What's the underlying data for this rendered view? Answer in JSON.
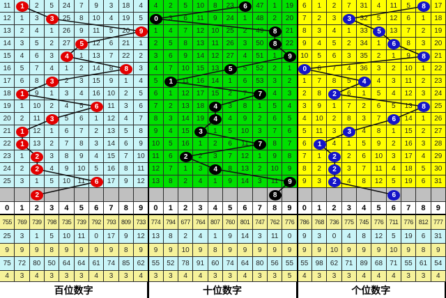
{
  "chart_data": {
    "type": "table",
    "digit_headers": [
      "0",
      "1",
      "2",
      "3",
      "4",
      "5",
      "6",
      "7",
      "8",
      "9"
    ],
    "panels": [
      {
        "label": "百位数字",
        "colors": {
          "background": "#c9f5f8",
          "ball": "#e30000",
          "ball_text": "#ffffff",
          "line": "#111111"
        },
        "hits": [
          1,
          3,
          9,
          5,
          4,
          8,
          3,
          1,
          6,
          3,
          1,
          1,
          2,
          2,
          6,
          2
        ],
        "rows": [
          [
            11,
            1,
            2,
            5,
            24,
            7,
            9,
            3,
            18,
            4
          ],
          [
            12,
            1,
            3,
            3,
            25,
            8,
            10,
            4,
            19,
            5
          ],
          [
            13,
            2,
            4,
            1,
            26,
            9,
            11,
            5,
            20,
            9
          ],
          [
            14,
            3,
            5,
            2,
            27,
            5,
            12,
            6,
            21,
            1
          ],
          [
            15,
            4,
            6,
            3,
            4,
            1,
            13,
            7,
            22,
            2
          ],
          [
            16,
            5,
            7,
            4,
            1,
            2,
            14,
            8,
            8,
            3
          ],
          [
            17,
            6,
            8,
            3,
            2,
            3,
            15,
            9,
            1,
            4
          ],
          [
            18,
            1,
            9,
            1,
            3,
            4,
            16,
            10,
            2,
            5
          ],
          [
            19,
            1,
            10,
            2,
            4,
            5,
            6,
            11,
            3,
            6
          ],
          [
            20,
            2,
            11,
            3,
            5,
            6,
            1,
            12,
            4,
            7
          ],
          [
            21,
            1,
            12,
            1,
            6,
            7,
            2,
            13,
            5,
            8
          ],
          [
            22,
            1,
            13,
            2,
            7,
            8,
            3,
            14,
            6,
            9
          ],
          [
            23,
            1,
            2,
            3,
            8,
            9,
            4,
            15,
            7,
            10
          ],
          [
            24,
            2,
            2,
            4,
            9,
            10,
            5,
            16,
            8,
            11
          ],
          [
            25,
            3,
            1,
            5,
            10,
            11,
            6,
            17,
            9,
            12
          ]
        ],
        "stats": [
          [
            "755",
            "769",
            "739",
            "798",
            "735",
            "739",
            "792",
            "793",
            "809",
            "733"
          ],
          [
            "25",
            "3",
            "1",
            "5",
            "10",
            "11",
            "0",
            "17",
            "9",
            "12"
          ],
          [
            "9",
            "9",
            "9",
            "8",
            "9",
            "9",
            "9",
            "9",
            "8",
            "9"
          ],
          [
            "75",
            "72",
            "80",
            "50",
            "64",
            "64",
            "61",
            "74",
            "85",
            "62"
          ],
          [
            "4",
            "3",
            "4",
            "3",
            "3",
            "3",
            "4",
            "3",
            "3",
            "4"
          ]
        ]
      },
      {
        "label": "十位数字",
        "colors": {
          "background": "#00e000",
          "ball": "#000000",
          "ball_text": "#ffffff",
          "line": "#111111"
        },
        "hits": [
          6,
          0,
          8,
          8,
          9,
          5,
          1,
          7,
          4,
          4,
          3,
          7,
          2,
          4,
          9,
          8
        ],
        "rows": [
          [
            4,
            2,
            5,
            10,
            8,
            23,
            6,
            47,
            1,
            19
          ],
          [
            0,
            3,
            6,
            11,
            9,
            24,
            1,
            48,
            2,
            20
          ],
          [
            1,
            4,
            7,
            12,
            10,
            25,
            2,
            49,
            8,
            21
          ],
          [
            2,
            5,
            8,
            13,
            11,
            26,
            3,
            50,
            8,
            22
          ],
          [
            3,
            6,
            9,
            14,
            12,
            27,
            4,
            51,
            1,
            9
          ],
          [
            4,
            7,
            10,
            15,
            13,
            5,
            5,
            52,
            2,
            1
          ],
          [
            5,
            1,
            11,
            16,
            14,
            1,
            6,
            53,
            3,
            2
          ],
          [
            6,
            1,
            12,
            17,
            15,
            2,
            7,
            7,
            4,
            3
          ],
          [
            7,
            2,
            13,
            18,
            4,
            3,
            8,
            1,
            5,
            4
          ],
          [
            8,
            3,
            14,
            19,
            4,
            4,
            9,
            2,
            6,
            5
          ],
          [
            9,
            4,
            15,
            3,
            1,
            5,
            10,
            3,
            7,
            6
          ],
          [
            10,
            5,
            16,
            1,
            2,
            6,
            11,
            7,
            8,
            7
          ],
          [
            11,
            6,
            2,
            2,
            3,
            7,
            12,
            1,
            9,
            8
          ],
          [
            12,
            7,
            1,
            3,
            4,
            8,
            13,
            2,
            10,
            9
          ],
          [
            13,
            8,
            2,
            4,
            1,
            9,
            14,
            3,
            11,
            9
          ]
        ],
        "stats": [
          [
            "774",
            "794",
            "677",
            "764",
            "807",
            "760",
            "801",
            "747",
            "762",
            "776"
          ],
          [
            "13",
            "8",
            "2",
            "4",
            "1",
            "9",
            "14",
            "3",
            "11",
            "0"
          ],
          [
            "9",
            "9",
            "10",
            "9",
            "8",
            "9",
            "9",
            "9",
            "9",
            "9"
          ],
          [
            "55",
            "52",
            "78",
            "91",
            "60",
            "74",
            "64",
            "80",
            "56",
            "55"
          ],
          [
            "3",
            "3",
            "4",
            "4",
            "3",
            "3",
            "4",
            "3",
            "3",
            "5"
          ]
        ]
      },
      {
        "label": "个位数字",
        "colors": {
          "background": "#ffff00",
          "ball": "#1414c8",
          "ball_text": "#ffffff",
          "line": "#111111"
        },
        "hits": [
          8,
          3,
          5,
          6,
          8,
          0,
          4,
          2,
          8,
          6,
          3,
          1,
          2,
          2,
          2,
          6
        ],
        "rows": [
          [
            6,
            1,
            2,
            7,
            31,
            4,
            11,
            5,
            8,
            17
          ],
          [
            7,
            2,
            3,
            3,
            32,
            5,
            12,
            6,
            1,
            18
          ],
          [
            8,
            3,
            4,
            1,
            33,
            5,
            13,
            7,
            2,
            19
          ],
          [
            9,
            4,
            5,
            2,
            34,
            1,
            6,
            8,
            3,
            20
          ],
          [
            10,
            5,
            6,
            3,
            35,
            2,
            1,
            9,
            8,
            21
          ],
          [
            0,
            6,
            7,
            4,
            36,
            3,
            2,
            10,
            1,
            22
          ],
          [
            1,
            7,
            8,
            5,
            4,
            4,
            3,
            11,
            2,
            23
          ],
          [
            2,
            8,
            2,
            6,
            1,
            5,
            4,
            12,
            3,
            24
          ],
          [
            3,
            9,
            1,
            7,
            2,
            6,
            5,
            13,
            8,
            25
          ],
          [
            4,
            10,
            2,
            8,
            3,
            7,
            6,
            14,
            1,
            26
          ],
          [
            5,
            11,
            3,
            3,
            4,
            8,
            1,
            15,
            2,
            27
          ],
          [
            6,
            1,
            4,
            1,
            5,
            9,
            2,
            16,
            3,
            28
          ],
          [
            7,
            1,
            2,
            2,
            6,
            10,
            3,
            17,
            4,
            29
          ],
          [
            8,
            2,
            2,
            3,
            7,
            11,
            4,
            18,
            5,
            30
          ],
          [
            9,
            3,
            2,
            4,
            8,
            12,
            5,
            19,
            6,
            31
          ]
        ],
        "stats": [
          [
            "786",
            "768",
            "736",
            "775",
            "745",
            "776",
            "711",
            "776",
            "812",
            "777"
          ],
          [
            "9",
            "3",
            "0",
            "4",
            "8",
            "12",
            "5",
            "19",
            "6",
            "31"
          ],
          [
            "9",
            "9",
            "10",
            "9",
            "9",
            "9",
            "10",
            "9",
            "8",
            "9"
          ],
          [
            "55",
            "98",
            "62",
            "71",
            "89",
            "68",
            "71",
            "55",
            "61",
            "54"
          ],
          [
            "4",
            "3",
            "3",
            "3",
            "4",
            "4",
            "4",
            "3",
            "3",
            "4"
          ]
        ]
      }
    ],
    "colors": {
      "predict_row": "#c0c0c0",
      "stat_yellow": "#f6f29a",
      "stat_cyan": "#c9f5f8",
      "grid": "#2a2a2a"
    }
  }
}
